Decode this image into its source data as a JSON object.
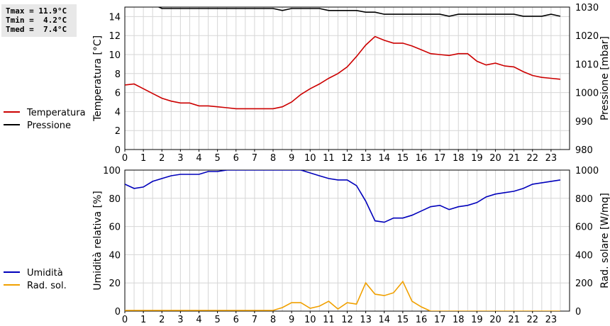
{
  "stats": {
    "tmax": "Tmax = 11.9°C",
    "tmin": "Tmin =  4.2°C",
    "tmed": "Tmed =  7.4°C"
  },
  "chart_data": [
    {
      "type": "line",
      "x_label": "",
      "x_ticks": [
        0,
        1,
        2,
        3,
        4,
        5,
        6,
        7,
        8,
        9,
        10,
        11,
        12,
        13,
        14,
        15,
        16,
        17,
        18,
        19,
        20,
        21,
        22,
        23
      ],
      "x_range": [
        0,
        24
      ],
      "left_axis": {
        "label": "Temperatura [°C]",
        "range": [
          0,
          15
        ],
        "ticks": [
          0,
          2,
          4,
          6,
          8,
          10,
          12,
          14
        ]
      },
      "right_axis": {
        "label": "Pressione [mbar]",
        "range": [
          980,
          1030
        ],
        "ticks": [
          980,
          990,
          1000,
          1010,
          1020,
          1030
        ]
      },
      "grid": true,
      "legend_position": "left",
      "series": [
        {
          "name": "Temperatura",
          "axis": "left",
          "color": "#cc0000",
          "x": [
            0,
            0.5,
            1,
            1.5,
            2,
            2.5,
            3,
            3.5,
            4,
            4.5,
            5,
            5.5,
            6,
            6.5,
            7,
            7.5,
            8,
            8.5,
            9,
            9.5,
            10,
            10.5,
            11,
            11.5,
            12,
            12.5,
            13,
            13.5,
            14,
            14.5,
            15,
            15.5,
            16,
            16.5,
            17,
            17.5,
            18,
            18.5,
            19,
            19.5,
            20,
            20.5,
            21,
            21.5,
            22,
            22.5,
            23,
            23.5
          ],
          "y": [
            6.8,
            6.9,
            6.4,
            5.9,
            5.4,
            5.1,
            4.9,
            4.9,
            4.6,
            4.6,
            4.5,
            4.4,
            4.3,
            4.3,
            4.3,
            4.3,
            4.3,
            4.5,
            5.0,
            5.8,
            6.4,
            6.9,
            7.5,
            8.0,
            8.7,
            9.8,
            11.0,
            11.9,
            11.5,
            11.2,
            11.2,
            10.9,
            10.5,
            10.1,
            10.0,
            9.9,
            10.1,
            10.1,
            9.3,
            8.9,
            9.1,
            8.8,
            8.7,
            8.2,
            7.8,
            7.6,
            7.5,
            7.4
          ]
        },
        {
          "name": "Pressione",
          "axis": "right",
          "color": "#000000",
          "x": [
            0,
            0.5,
            1,
            1.5,
            2,
            2.5,
            3,
            3.5,
            4,
            4.5,
            5,
            5.5,
            6,
            6.5,
            7,
            7.5,
            8,
            8.5,
            9,
            9.5,
            10,
            10.5,
            11,
            11.5,
            12,
            12.5,
            13,
            13.5,
            14,
            14.5,
            15,
            15.5,
            16,
            16.5,
            17,
            17.5,
            18,
            18.5,
            19,
            19.5,
            20,
            20.5,
            21,
            21.5,
            22,
            22.5,
            23,
            23.5
          ],
          "y": [
            1031,
            1031,
            1031,
            1031,
            1029.5,
            1029.5,
            1029.5,
            1029.5,
            1029.5,
            1029.5,
            1029.5,
            1029.5,
            1029.5,
            1029.5,
            1029.5,
            1029.5,
            1029.5,
            1028.8,
            1029.5,
            1029.5,
            1029.5,
            1029.5,
            1028.8,
            1028.8,
            1028.8,
            1028.8,
            1028.2,
            1028.2,
            1027.5,
            1027.5,
            1027.5,
            1027.5,
            1027.5,
            1027.5,
            1027.5,
            1026.8,
            1027.5,
            1027.5,
            1027.5,
            1027.5,
            1027.5,
            1027.5,
            1027.5,
            1026.8,
            1026.8,
            1026.8,
            1027.5,
            1026.8
          ]
        }
      ]
    },
    {
      "type": "line",
      "x_label": "",
      "x_ticks": [
        0,
        1,
        2,
        3,
        4,
        5,
        6,
        7,
        8,
        9,
        10,
        11,
        12,
        13,
        14,
        15,
        16,
        17,
        18,
        19,
        20,
        21,
        22,
        23
      ],
      "x_range": [
        0,
        24
      ],
      "left_axis": {
        "label": "Umidità relativa [%]",
        "range": [
          0,
          100
        ],
        "ticks": [
          0,
          20,
          40,
          60,
          80,
          100
        ]
      },
      "right_axis": {
        "label": "Rad. solare [W/mq]",
        "range": [
          0,
          1000
        ],
        "ticks": [
          0,
          200,
          400,
          600,
          800,
          1000
        ]
      },
      "grid": true,
      "legend_position": "left",
      "series": [
        {
          "name": "Umidità",
          "axis": "left",
          "color": "#0000bb",
          "x": [
            0,
            0.5,
            1,
            1.5,
            2,
            2.5,
            3,
            3.5,
            4,
            4.5,
            5,
            5.5,
            6,
            6.5,
            7,
            7.5,
            8,
            8.5,
            9,
            9.5,
            10,
            10.5,
            11,
            11.5,
            12,
            12.5,
            13,
            13.5,
            14,
            14.5,
            15,
            15.5,
            16,
            16.5,
            17,
            17.5,
            18,
            18.5,
            19,
            19.5,
            20,
            20.5,
            21,
            21.5,
            22,
            22.5,
            23,
            23.5
          ],
          "y": [
            90,
            87,
            88,
            92,
            94,
            96,
            97,
            97,
            97,
            99,
            99,
            100,
            100,
            100,
            100,
            100,
            100,
            100,
            100,
            100,
            98,
            96,
            94,
            93,
            93,
            89,
            78,
            64,
            63,
            66,
            66,
            68,
            71,
            74,
            75,
            72,
            74,
            75,
            77,
            81,
            83,
            84,
            85,
            87,
            90,
            91,
            92,
            93
          ]
        },
        {
          "name": "Rad. sol.",
          "axis": "right",
          "color": "#f0a000",
          "x": [
            0,
            0.5,
            1,
            1.5,
            2,
            2.5,
            3,
            3.5,
            4,
            4.5,
            5,
            5.5,
            6,
            6.5,
            7,
            7.5,
            8,
            8.5,
            9,
            9.5,
            10,
            10.5,
            11,
            11.5,
            12,
            12.5,
            13,
            13.5,
            14,
            14.5,
            15,
            15.5,
            16,
            16.5,
            17,
            17.5,
            18,
            18.5,
            19,
            19.5,
            20,
            20.5,
            21,
            21.5,
            22,
            22.5,
            23,
            23.5
          ],
          "y": [
            5,
            5,
            5,
            5,
            5,
            5,
            5,
            5,
            5,
            5,
            5,
            5,
            5,
            5,
            5,
            5,
            5,
            25,
            60,
            60,
            20,
            35,
            70,
            15,
            60,
            50,
            200,
            120,
            110,
            130,
            210,
            70,
            30,
            0,
            0,
            0,
            0,
            0,
            0,
            0,
            0,
            0,
            0,
            0,
            0,
            0,
            0,
            0
          ]
        }
      ]
    }
  ]
}
